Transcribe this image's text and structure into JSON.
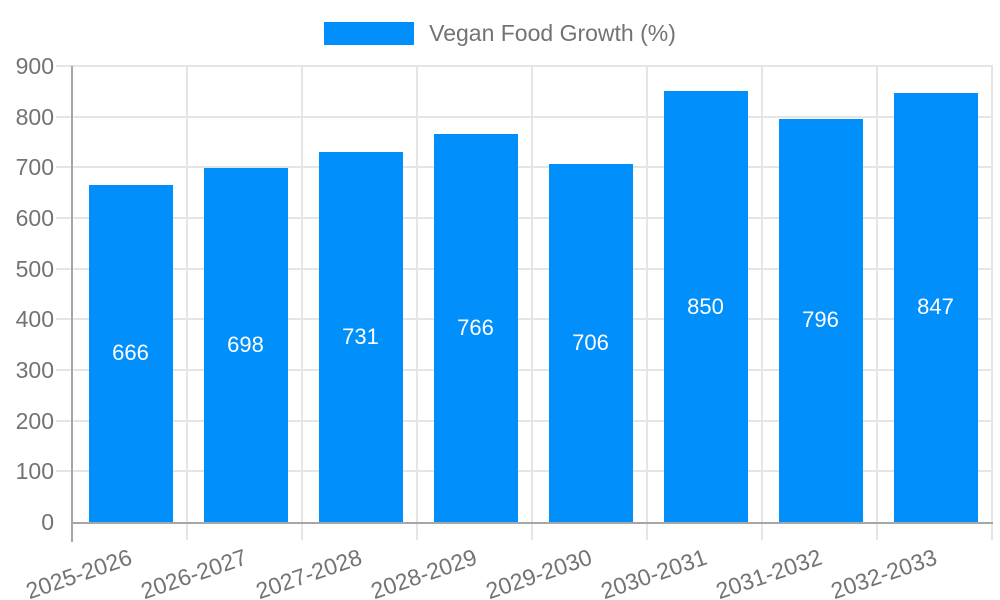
{
  "legend": {
    "label": "Vegan Food Growth (%)"
  },
  "colors": {
    "bar": "#008FFB",
    "grid": "#e5e5e5",
    "axis": "#a6a6a6",
    "tick_label": "#737373",
    "data_label": "#ffffff",
    "background": "#ffffff"
  },
  "chart_data": {
    "type": "bar",
    "title": "",
    "categories": [
      "2025-2026",
      "2026-2027",
      "2027-2028",
      "2028-2029",
      "2029-2030",
      "2030-2031",
      "2031-2032",
      "2032-2033"
    ],
    "series": [
      {
        "name": "Vegan Food Growth (%)",
        "values": [
          666,
          698,
          731,
          766,
          706,
          850,
          796,
          847
        ]
      }
    ],
    "xlabel": "",
    "ylabel": "",
    "ylim": [
      0,
      900
    ],
    "yticks": [
      0,
      100,
      200,
      300,
      400,
      500,
      600,
      700,
      800,
      900
    ],
    "grid": true,
    "legend_position": "top-center",
    "data_labels": "inside-center",
    "x_label_rotation_deg": -19
  }
}
